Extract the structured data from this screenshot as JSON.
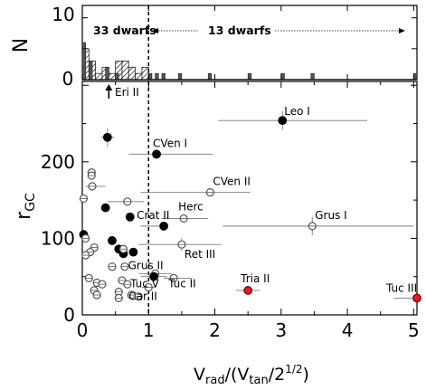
{
  "chart_data": {
    "type": "scatter",
    "top_panel": {
      "type": "histogram",
      "ylabel": "N",
      "y_ticks": [
        "0",
        "10"
      ],
      "ylim": [
        0,
        12
      ],
      "bins_hatched": [
        {
          "x0": 0.0,
          "x1": 0.1,
          "n": 5
        },
        {
          "x0": 0.1,
          "x1": 0.2,
          "n": 3
        },
        {
          "x0": 0.2,
          "x1": 0.3,
          "n": 1
        },
        {
          "x0": 0.3,
          "x1": 0.4,
          "n": 2
        },
        {
          "x0": 0.4,
          "x1": 0.5,
          "n": 1
        },
        {
          "x0": 0.5,
          "x1": 0.6,
          "n": 3
        },
        {
          "x0": 0.6,
          "x1": 0.7,
          "n": 3
        },
        {
          "x0": 0.7,
          "x1": 0.8,
          "n": 2
        },
        {
          "x0": 0.8,
          "x1": 0.9,
          "n": 1
        },
        {
          "x0": 0.9,
          "x1": 1.0,
          "n": 2
        }
      ],
      "bins_solid": [
        {
          "x0": 0.0,
          "x1": 0.05,
          "n": 6
        },
        {
          "x0": 0.1,
          "x1": 0.15,
          "n": 3
        },
        {
          "x0": 0.35,
          "x1": 0.4,
          "n": 2
        },
        {
          "x0": 0.5,
          "x1": 0.55,
          "n": 1
        },
        {
          "x0": 1.0,
          "x1": 1.05,
          "n": 1
        },
        {
          "x0": 1.1,
          "x1": 1.15,
          "n": 1
        },
        {
          "x0": 1.2,
          "x1": 1.25,
          "n": 1
        },
        {
          "x0": 1.45,
          "x1": 1.5,
          "n": 1
        },
        {
          "x0": 1.9,
          "x1": 1.95,
          "n": 1
        },
        {
          "x0": 2.5,
          "x1": 2.55,
          "n": 1
        },
        {
          "x0": 3.0,
          "x1": 3.05,
          "n": 1
        },
        {
          "x0": 3.45,
          "x1": 3.5,
          "n": 1
        },
        {
          "x0": 5.0,
          "x1": 5.05,
          "n": 1
        }
      ],
      "left_text": "33 dwarfs",
      "right_text": "13 dwarfs"
    },
    "xlabel": "V",
    "xlabel_sub1": "rad",
    "xlabel_mid": "/(V",
    "xlabel_sub2": "tan",
    "xlabel_mid2": "/2",
    "xlabel_sup": "1/2",
    "xlabel_end": ")",
    "ylabel": "r",
    "ylabel_sub": "GC",
    "xlim": [
      0,
      5.05
    ],
    "ylim": [
      0,
      305
    ],
    "x_ticks": [
      0,
      1,
      2,
      3,
      4,
      5
    ],
    "y_ticks": [
      0,
      100,
      200
    ],
    "vline_x": 1.0,
    "arrow_label": "Eri II",
    "arrow_x": 0.4,
    "colors": {
      "filled": "#000000",
      "highlight": "#e41a1c",
      "open_edge": "#555555",
      "errorbar": "#777777"
    },
    "points": [
      {
        "name": "Leo I",
        "x": 3.02,
        "y": 254,
        "style": "filled",
        "xerr": [
          0.97,
          1.28
        ],
        "yerr": 12
      },
      {
        "name": "CVen I",
        "x": 1.12,
        "y": 210,
        "style": "filled",
        "xerr": [
          0.42,
          0.85
        ],
        "yerr": 6
      },
      {
        "name": "CVen II",
        "x": 1.93,
        "y": 160,
        "style": "open",
        "xerr": [
          1.05,
          0.6
        ],
        "yerr": 4
      },
      {
        "name": "Herc",
        "x": 1.53,
        "y": 126,
        "style": "open",
        "xerr": [
          0.34,
          0.37
        ],
        "yerr": 6
      },
      {
        "name": "Crat II",
        "x": 1.23,
        "y": 116,
        "style": "filled",
        "xerr": [
          0.35,
          0.0
        ],
        "yerr": 3
      },
      {
        "name": "Grus I",
        "x": 3.47,
        "y": 116,
        "style": "open",
        "xerr": [
          1.35,
          1.53
        ],
        "yerr": 12
      },
      {
        "name": "Ret III",
        "x": 1.5,
        "y": 92,
        "style": "open",
        "xerr": [
          0.65,
          0.6
        ],
        "yerr": 8
      },
      {
        "name": "Grus II",
        "x": 1.1,
        "y": 54,
        "style": "open",
        "xerr": [
          0.25,
          0.25
        ],
        "yerr": 5
      },
      {
        "name": "Tuc V",
        "x": 1.08,
        "y": 50,
        "style": "filled",
        "xerr": [
          0.2,
          0.2
        ],
        "yerr": 3
      },
      {
        "name": "Tuc II",
        "x": 1.38,
        "y": 48,
        "style": "open",
        "xerr": [
          0.15,
          0.28
        ],
        "yerr": 4
      },
      {
        "name": "Car II",
        "x": 1.0,
        "y": 36,
        "style": "open",
        "xerr": [
          0.1,
          0.1
        ],
        "yerr": 3
      },
      {
        "name": "Tria II",
        "x": 2.5,
        "y": 32,
        "style": "highlight",
        "xerr": [
          0.18,
          0.18
        ],
        "yerr": 3
      },
      {
        "name": "Tuc III",
        "x": 5.05,
        "y": 22,
        "style": "highlight",
        "xerr": [
          0.35,
          0.0
        ],
        "yerr": 3
      },
      {
        "name": "",
        "x": 0.38,
        "y": 232,
        "style": "filled",
        "xerr": [
          0.1,
          0.1
        ],
        "yerr": 12
      },
      {
        "name": "",
        "x": 0.14,
        "y": 186,
        "style": "open",
        "xerr": [
          0.04,
          0.04
        ],
        "yerr": 4
      },
      {
        "name": "",
        "x": 0.14,
        "y": 182,
        "style": "open",
        "xerr": [
          0.04,
          0.04
        ],
        "yerr": 4
      },
      {
        "name": "",
        "x": 0.15,
        "y": 168,
        "style": "open",
        "xerr": [
          0.1,
          0.2
        ],
        "yerr": 6
      },
      {
        "name": "",
        "x": 0.68,
        "y": 148,
        "style": "open",
        "xerr": [
          0.3,
          0.25
        ],
        "yerr": 5
      },
      {
        "name": "",
        "x": 0.02,
        "y": 152,
        "style": "open",
        "xerr": [
          0.03,
          0.05
        ],
        "yerr": 4
      },
      {
        "name": "",
        "x": 0.35,
        "y": 140,
        "style": "filled",
        "xerr": [
          0.05,
          0.05
        ],
        "yerr": 4
      },
      {
        "name": "",
        "x": 0.72,
        "y": 128,
        "style": "filled",
        "xerr": [
          0.05,
          0.05
        ],
        "yerr": 4
      },
      {
        "name": "",
        "x": 0.02,
        "y": 105,
        "style": "filled",
        "xerr": [
          0.04,
          0.04
        ],
        "yerr": 3
      },
      {
        "name": "",
        "x": 0.05,
        "y": 100,
        "style": "open",
        "xerr": [
          0.03,
          0.03
        ],
        "yerr": 3
      },
      {
        "name": "",
        "x": 0.45,
        "y": 97,
        "style": "filled",
        "xerr": [
          0.04,
          0.04
        ],
        "yerr": 3
      },
      {
        "name": "",
        "x": 0.55,
        "y": 86,
        "style": "filled",
        "xerr": [
          0.04,
          0.04
        ],
        "yerr": 3
      },
      {
        "name": "",
        "x": 0.62,
        "y": 80,
        "style": "filled",
        "xerr": [
          0.04,
          0.04
        ],
        "yerr": 3
      },
      {
        "name": "",
        "x": 0.77,
        "y": 82,
        "style": "filled",
        "xerr": [
          0.04,
          0.04
        ],
        "yerr": 3
      },
      {
        "name": "",
        "x": 0.62,
        "y": 86,
        "style": "open",
        "xerr": [
          0.04,
          0.04
        ],
        "yerr": 3
      },
      {
        "name": "",
        "x": 0.18,
        "y": 88,
        "style": "open",
        "xerr": [
          0.04,
          0.04
        ],
        "yerr": 3
      },
      {
        "name": "",
        "x": 0.12,
        "y": 82,
        "style": "open",
        "xerr": [
          0.04,
          0.04
        ],
        "yerr": 3
      },
      {
        "name": "",
        "x": 0.05,
        "y": 78,
        "style": "open",
        "xerr": [
          0.03,
          0.03
        ],
        "yerr": 3
      },
      {
        "name": "",
        "x": 0.45,
        "y": 63,
        "style": "open",
        "xerr": [
          0.04,
          0.04
        ],
        "yerr": 3
      },
      {
        "name": "",
        "x": 0.64,
        "y": 63,
        "style": "open",
        "xerr": [
          0.04,
          0.04
        ],
        "yerr": 3
      },
      {
        "name": "",
        "x": 0.1,
        "y": 48,
        "style": "open",
        "xerr": [
          0.04,
          0.04
        ],
        "yerr": 3
      },
      {
        "name": "",
        "x": 0.22,
        "y": 42,
        "style": "open",
        "xerr": [
          0.04,
          0.04
        ],
        "yerr": 3
      },
      {
        "name": "",
        "x": 0.3,
        "y": 40,
        "style": "open",
        "xerr": [
          0.04,
          0.04
        ],
        "yerr": 3
      },
      {
        "name": "",
        "x": 0.6,
        "y": 45,
        "style": "open",
        "xerr": [
          0.05,
          0.05
        ],
        "yerr": 3
      },
      {
        "name": "",
        "x": 0.68,
        "y": 40,
        "style": "open",
        "xerr": [
          0.05,
          0.05
        ],
        "yerr": 3
      },
      {
        "name": "",
        "x": 0.18,
        "y": 32,
        "style": "open",
        "xerr": [
          0.04,
          0.04
        ],
        "yerr": 3
      },
      {
        "name": "",
        "x": 0.22,
        "y": 26,
        "style": "open",
        "xerr": [
          0.04,
          0.04
        ],
        "yerr": 3
      },
      {
        "name": "",
        "x": 0.55,
        "y": 30,
        "style": "open",
        "xerr": [
          0.04,
          0.04
        ],
        "yerr": 3
      },
      {
        "name": "",
        "x": 0.74,
        "y": 26,
        "style": "open",
        "xerr": [
          0.04,
          0.04
        ],
        "yerr": 3
      },
      {
        "name": "",
        "x": 0.85,
        "y": 24,
        "style": "open",
        "xerr": [
          0.04,
          0.04
        ],
        "yerr": 3
      },
      {
        "name": "",
        "x": 0.55,
        "y": 22,
        "style": "open",
        "xerr": [
          0.04,
          0.04
        ],
        "yerr": 3
      }
    ]
  }
}
